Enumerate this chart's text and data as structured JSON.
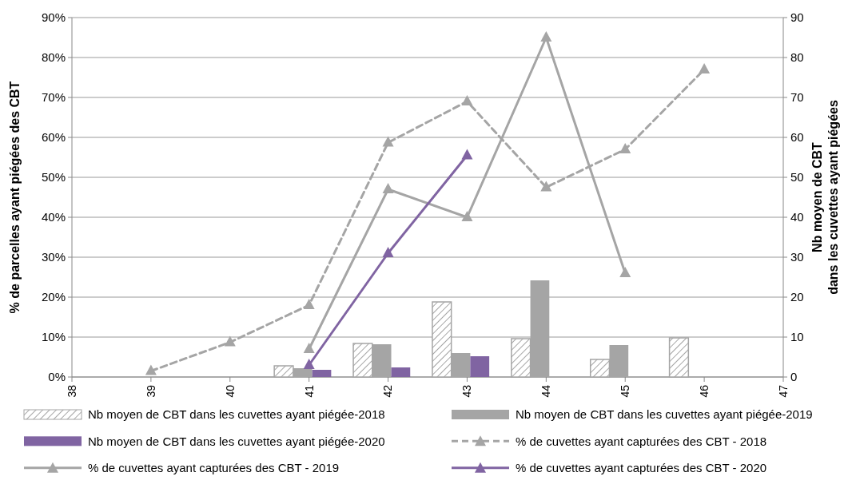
{
  "chart_data": {
    "type": "bar",
    "ylabel": "% de parcelles ayant piégées des CBT",
    "y2label": "Nb moyen de CBT\ndans les cuvettes ayant piégées",
    "x": [
      39,
      40,
      41,
      42,
      43,
      44,
      45,
      46
    ],
    "xlim": [
      38,
      47
    ],
    "xticks": [
      38,
      39,
      40,
      41,
      42,
      43,
      44,
      45,
      46,
      47
    ],
    "ylim": [
      0,
      90
    ],
    "yticks": [
      {
        "value": 0,
        "label": "0%"
      },
      {
        "value": 10,
        "label": "10%"
      },
      {
        "value": 20,
        "label": "20%"
      },
      {
        "value": 30,
        "label": "30%"
      },
      {
        "value": 40,
        "label": "40%"
      },
      {
        "value": 50,
        "label": "50%"
      },
      {
        "value": 60,
        "label": "60%"
      },
      {
        "value": 70,
        "label": "70%"
      },
      {
        "value": 80,
        "label": "80%"
      },
      {
        "value": 90,
        "label": "90%"
      }
    ],
    "y2lim": [
      0,
      90
    ],
    "y2ticks": [
      0,
      10,
      20,
      30,
      40,
      50,
      60,
      70,
      80,
      90
    ],
    "grid": "y",
    "legend": "bottom",
    "series": [
      {
        "name": "Nb moyen de CBT dans les cuvettes ayant piégée-2018",
        "axis": "y2",
        "color": "#a5a5a5",
        "values": [
          null,
          null,
          2.8,
          8.4,
          18.8,
          9.6,
          4.4,
          9.8
        ]
      },
      {
        "name": "Nb moyen de CBT dans les cuvettes ayant piégée-2019",
        "axis": "y2",
        "color": "#a5a5a5",
        "values": [
          null,
          null,
          2.2,
          8.2,
          6,
          24.2,
          8,
          null
        ]
      },
      {
        "name": "Nb moyen de CBT dans les cuvettes ayant piégée-2020",
        "axis": "y2",
        "color": "#8064a2",
        "values": [
          null,
          null,
          1.8,
          2.4,
          5.2,
          null,
          null,
          null
        ]
      },
      {
        "name": "% de cuvettes ayant capturées des CBT - 2018",
        "type": "line",
        "color": "#a5a5a5",
        "line_style": "dashed",
        "marker": "triangle",
        "values": [
          1.5,
          8.7,
          18,
          58.7,
          69,
          47.5,
          57,
          77
        ]
      },
      {
        "name": "% de cuvettes ayant capturées des CBT - 2019",
        "type": "line",
        "color": "#a5a5a5",
        "line_style": "solid",
        "marker": "triangle",
        "values": [
          null,
          null,
          7,
          47,
          40,
          85,
          26,
          null
        ]
      },
      {
        "name": "% de cuvettes ayant capturées des CBT - 2020",
        "type": "line",
        "color": "#8064a2",
        "line_style": "solid",
        "marker": "triangle",
        "values": [
          null,
          null,
          3,
          31,
          55.5,
          null,
          null,
          null
        ]
      }
    ]
  }
}
